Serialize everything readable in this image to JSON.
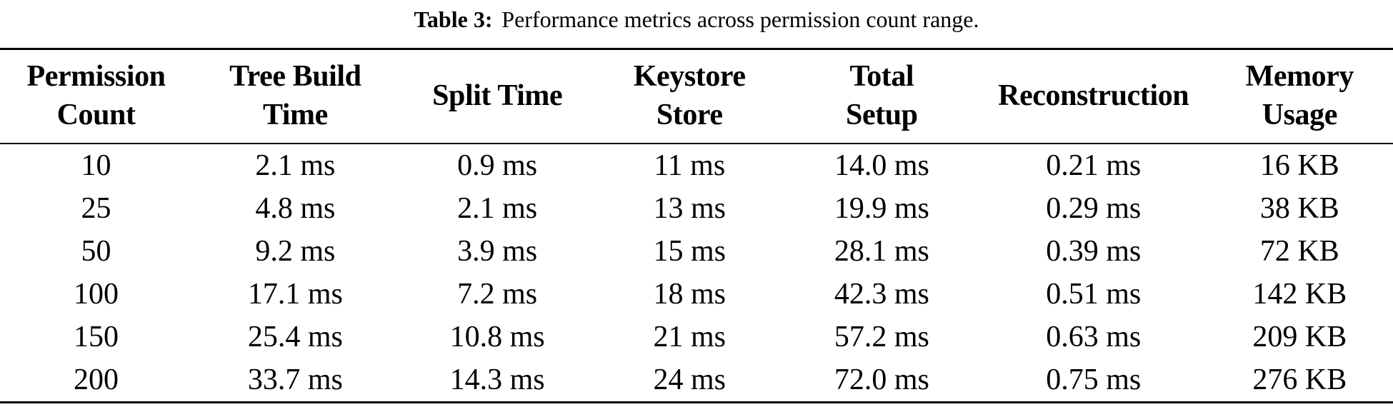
{
  "caption": {
    "label": "Table 3:",
    "text": "Performance metrics across permission count range."
  },
  "table": {
    "columns": [
      "Permission\nCount",
      "Tree Build\nTime",
      "Split Time",
      "Keystore\nStore",
      "Total\nSetup",
      "Reconstruction",
      "Memory\nUsage"
    ],
    "rows": [
      [
        "10",
        "2.1 ms",
        "0.9 ms",
        "11 ms",
        "14.0 ms",
        "0.21 ms",
        "16 KB"
      ],
      [
        "25",
        "4.8 ms",
        "2.1 ms",
        "13 ms",
        "19.9 ms",
        "0.29 ms",
        "38 KB"
      ],
      [
        "50",
        "9.2 ms",
        "3.9 ms",
        "15 ms",
        "28.1 ms",
        "0.39 ms",
        "72 KB"
      ],
      [
        "100",
        "17.1 ms",
        "7.2 ms",
        "18 ms",
        "42.3 ms",
        "0.51 ms",
        "142 KB"
      ],
      [
        "150",
        "25.4 ms",
        "10.8 ms",
        "21 ms",
        "57.2 ms",
        "0.63 ms",
        "209 KB"
      ],
      [
        "200",
        "33.7 ms",
        "14.3 ms",
        "24 ms",
        "72.0 ms",
        "0.75 ms",
        "276 KB"
      ]
    ]
  },
  "colors": {
    "text": "#000000",
    "background": "#ffffff",
    "rule": "#000000"
  }
}
